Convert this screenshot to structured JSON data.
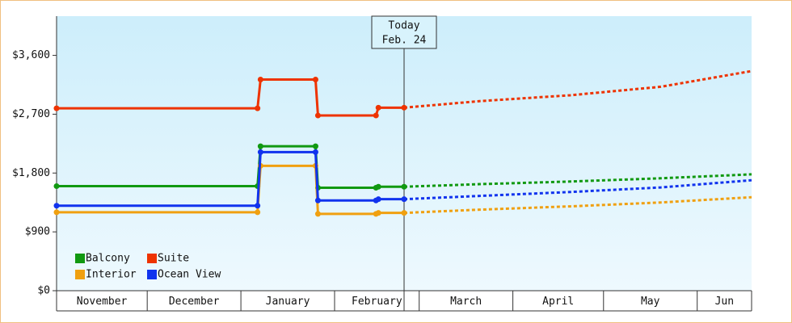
{
  "chart_data": {
    "type": "line",
    "ylim": [
      0,
      4200
    ],
    "yticks": [
      {
        "value": 0,
        "label": "$0"
      },
      {
        "value": 900,
        "label": "$900"
      },
      {
        "value": 1800,
        "label": "$1,800"
      },
      {
        "value": 2700,
        "label": "$2,700"
      },
      {
        "value": 3600,
        "label": "$3,600"
      }
    ],
    "xlim": [
      0,
      230
    ],
    "months": [
      {
        "label": "November",
        "start": 0,
        "end": 30
      },
      {
        "label": "December",
        "start": 30,
        "end": 61
      },
      {
        "label": "January",
        "start": 61,
        "end": 92
      },
      {
        "label": "February",
        "start": 92,
        "end": 120
      },
      {
        "label": "March",
        "start": 120,
        "end": 151
      },
      {
        "label": "April",
        "start": 151,
        "end": 181
      },
      {
        "label": "May",
        "start": 181,
        "end": 212
      },
      {
        "label": "Jun",
        "start": 212,
        "end": 230
      }
    ],
    "today": {
      "x": 115,
      "label": "Today",
      "date": "Feb. 24"
    },
    "series": [
      {
        "name": "Balcony",
        "color": "#119911",
        "x": [
          0,
          66.5,
          67.5,
          85.7,
          86.5,
          105.7,
          106.5,
          115
        ],
        "values": [
          1600,
          1600,
          2210,
          2210,
          1575,
          1575,
          1590,
          1590
        ],
        "forecast_x": [
          115,
          140,
          170,
          200,
          230
        ],
        "forecast_values": [
          1590,
          1630,
          1670,
          1720,
          1780
        ]
      },
      {
        "name": "Suite",
        "color": "#ee3300",
        "x": [
          0,
          66.5,
          67.5,
          85.7,
          86.5,
          105.7,
          106.5,
          115
        ],
        "values": [
          2790,
          2790,
          3230,
          3230,
          2680,
          2680,
          2800,
          2800
        ],
        "forecast_x": [
          115,
          140,
          170,
          200,
          230
        ],
        "forecast_values": [
          2800,
          2900,
          2990,
          3120,
          3360
        ]
      },
      {
        "name": "Interior",
        "color": "#f0a010",
        "x": [
          0,
          66.5,
          67.5,
          85.7,
          86.5,
          105.7,
          106.5,
          115
        ],
        "values": [
          1200,
          1200,
          1910,
          1910,
          1175,
          1175,
          1190,
          1190
        ],
        "forecast_x": [
          115,
          140,
          170,
          200,
          230
        ],
        "forecast_values": [
          1190,
          1240,
          1290,
          1350,
          1430
        ]
      },
      {
        "name": "Ocean View",
        "color": "#1133ee",
        "x": [
          0,
          66.5,
          67.5,
          85.7,
          86.5,
          105.7,
          106.5,
          115
        ],
        "values": [
          1300,
          1300,
          2120,
          2120,
          1380,
          1380,
          1400,
          1400
        ],
        "forecast_x": [
          115,
          140,
          170,
          200,
          230
        ],
        "forecast_values": [
          1400,
          1450,
          1510,
          1580,
          1690
        ]
      }
    ]
  }
}
